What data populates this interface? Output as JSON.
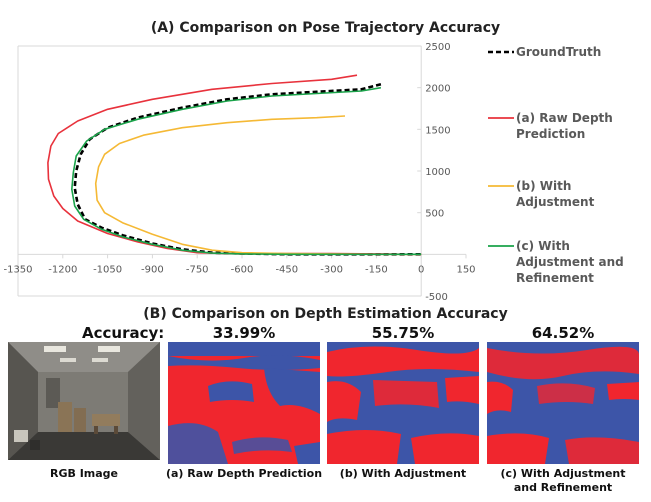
{
  "section_a_title": "(A) Comparison on Pose Trajectory Accuracy",
  "section_b_title": "(B) Comparison on Depth Estimation Accuracy",
  "accuracy_label": "Accuracy:",
  "accuracies": [
    "33.99%",
    "55.75%",
    "64.52%"
  ],
  "image_captions": {
    "rgb": "RGB Image",
    "raw": "(a) Raw Depth Prediction",
    "adj": "(b) With Adjustment",
    "ref_line1": "(c) With Adjustment",
    "ref_line2": "and Refinement"
  },
  "colors": {
    "groundtruth": "#000000",
    "raw": "#e8323c",
    "adj": "#f5b935",
    "ref": "#1aa34a",
    "depth_red": "#f0262e",
    "depth_blue": "#3d55a8"
  },
  "chart_data": {
    "type": "line",
    "title": "(A) Comparison on Pose Trajectory Accuracy",
    "xlim": [
      -1350,
      150
    ],
    "ylim": [
      -500,
      2500
    ],
    "x_ticks": [
      "-1350",
      "-1200",
      "-1050",
      "-900",
      "-750",
      "-600",
      "-450",
      "-300",
      "-150",
      "0",
      "150"
    ],
    "y_ticks": [
      "2500",
      "2000",
      "1500",
      "1000",
      "500",
      "-500"
    ],
    "grid": false,
    "legend_position": "right",
    "series": [
      {
        "name": "GroundTruth",
        "color": "#000000",
        "dashed": true,
        "x": [
          -135,
          -200,
          -350,
          -500,
          -650,
          -800,
          -950,
          -1050,
          -1110,
          -1140,
          -1155,
          -1160,
          -1150,
          -1125,
          -1070,
          -1000,
          -900,
          -800,
          -700,
          -600,
          -450,
          -300,
          -150,
          -50,
          0
        ],
        "y": [
          2040,
          1980,
          1950,
          1920,
          1860,
          1760,
          1640,
          1520,
          1380,
          1200,
          1000,
          800,
          600,
          420,
          320,
          230,
          130,
          60,
          20,
          10,
          0,
          0,
          0,
          0,
          0
        ]
      },
      {
        "name": "(a) Raw Depth Prediction",
        "color": "#e8323c",
        "dashed": false,
        "x": [
          -215,
          -300,
          -500,
          -700,
          -900,
          -1050,
          -1150,
          -1215,
          -1240,
          -1250,
          -1248,
          -1230,
          -1200,
          -1150,
          -1050,
          -950,
          -850,
          -750,
          -600,
          -450,
          -300,
          -150,
          -50,
          0
        ],
        "y": [
          2150,
          2100,
          2050,
          1980,
          1860,
          1740,
          1600,
          1450,
          1300,
          1100,
          900,
          700,
          550,
          400,
          250,
          150,
          70,
          20,
          5,
          10,
          10,
          5,
          0,
          0
        ]
      },
      {
        "name": "(b) With Adjustment",
        "color": "#f5b935",
        "dashed": false,
        "x": [
          -255,
          -350,
          -500,
          -650,
          -800,
          -930,
          -1010,
          -1060,
          -1080,
          -1090,
          -1085,
          -1060,
          -1000,
          -900,
          -800,
          -700,
          -600,
          -450,
          -300,
          -150,
          0
        ],
        "y": [
          1660,
          1640,
          1620,
          1580,
          1520,
          1430,
          1330,
          1200,
          1050,
          850,
          650,
          500,
          380,
          240,
          120,
          50,
          20,
          10,
          5,
          0,
          0
        ]
      },
      {
        "name": "(c) With Adjustment and Refinement",
        "color": "#1aa34a",
        "dashed": false,
        "x": [
          -135,
          -200,
          -350,
          -500,
          -650,
          -800,
          -950,
          -1060,
          -1120,
          -1155,
          -1165,
          -1170,
          -1160,
          -1130,
          -1070,
          -1000,
          -900,
          -800,
          -700,
          -600,
          -450,
          -300,
          -150,
          -50,
          0
        ],
        "y": [
          2000,
          1960,
          1930,
          1900,
          1840,
          1740,
          1620,
          1500,
          1360,
          1180,
          980,
          780,
          580,
          420,
          300,
          210,
          120,
          50,
          15,
          5,
          0,
          0,
          0,
          0,
          0
        ]
      }
    ]
  }
}
